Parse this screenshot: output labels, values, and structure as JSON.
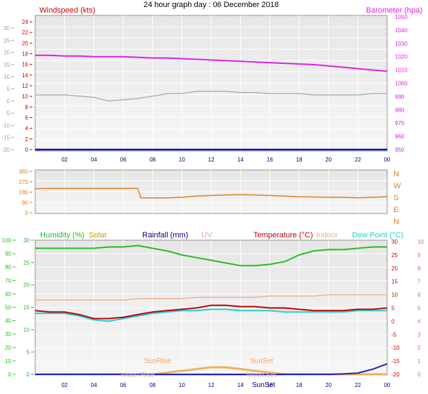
{
  "page_title": "24 hour graph day : 06 December 2018",
  "x_axis": {
    "ticks": [
      "02",
      "04",
      "06",
      "08",
      "10",
      "12",
      "14",
      "16",
      "18",
      "20",
      "22",
      "00"
    ]
  },
  "panel_wind_baro": {
    "left_label": "Windspeed (kts)",
    "right_label": "Barometer (hpa)",
    "left_outer_ticks": [
      "30",
      "25",
      "20",
      "15",
      "10",
      "5",
      "0",
      "-5",
      "-10",
      "-15",
      "-20"
    ],
    "left_ticks": [
      "24",
      "22",
      "20",
      "18",
      "16",
      "14",
      "12",
      "10",
      "8",
      "6",
      "4",
      "2",
      "0"
    ],
    "right_ticks": [
      "1050",
      "1040",
      "1030",
      "1020",
      "1010",
      "1000",
      "990",
      "980",
      "970",
      "960",
      "950"
    ],
    "colors": {
      "windspeed": "#d00000",
      "barometer": "#e020e0",
      "gust": "#b0b0b0",
      "outer": "#a0a0a0"
    }
  },
  "panel_direction": {
    "left_ticks": [
      "360",
      "270",
      "180",
      "90",
      "0"
    ],
    "right_labels": [
      "N",
      "W",
      "S",
      "E",
      "N"
    ],
    "color": "#e08020"
  },
  "panel_temp": {
    "labels": {
      "humidity": "Humidity (%)",
      "solar": "Solar",
      "rainfall": "Rainfall (mm)",
      "uv": "UV",
      "temperature": "Temperature (°C)",
      "indoor": "Indoor",
      "dewpoint": "Dew Point (°C)"
    },
    "left_outer_ticks": [
      "100",
      "90",
      "80",
      "70",
      "60",
      "50",
      "40",
      "30",
      "20",
      "10",
      "0"
    ],
    "left_ticks": [
      "30",
      "25",
      "20",
      "15",
      "10",
      "5",
      "0"
    ],
    "right_ticks": [
      "30",
      "25",
      "20",
      "15",
      "10",
      "5",
      "0",
      "-5",
      "-10",
      "-15",
      "-20"
    ],
    "right_outer_ticks": [
      "10",
      "9",
      "8",
      "7",
      "6",
      "5",
      "4",
      "3",
      "2",
      "1",
      "0"
    ],
    "annotations": {
      "sunrise": "SunRise",
      "sunset": "SunSet",
      "sunset_axis": "SunSet",
      "moonrise": "Moon Rise",
      "moonset": "Moon Set"
    },
    "colors": {
      "humidity": "#20c020",
      "solar": "#c0a000",
      "rainfall": "#000080",
      "uv": "#e0a0c0",
      "temperature": "#c00000",
      "indoor": "#f0b090",
      "dewpoint": "#20d0d0"
    }
  },
  "chart_data": [
    {
      "type": "line",
      "title": "24 hour graph day : 06 December 2018",
      "ylabel": "Windspeed (kts)",
      "ylabel_right": "Barometer (hpa)",
      "ylim": [
        0,
        25
      ],
      "ylim_right": [
        950,
        1050
      ],
      "x_hours": [
        0,
        1,
        2,
        3,
        4,
        5,
        6,
        7,
        8,
        9,
        10,
        11,
        12,
        13,
        14,
        15,
        16,
        17,
        18,
        19,
        20,
        21,
        22,
        23,
        24
      ],
      "series": [
        {
          "name": "Windspeed (kts)",
          "axis": "left",
          "values": [
            0,
            0,
            0,
            0,
            0,
            0,
            0,
            0,
            0,
            0,
            0,
            0,
            0,
            0,
            0,
            0,
            0,
            0,
            0,
            0,
            0,
            0,
            0,
            0,
            0
          ]
        },
        {
          "name": "Barometer (hpa)",
          "axis": "right",
          "values": [
            1021,
            1021,
            1020.5,
            1020.5,
            1020,
            1020,
            1020,
            1019.5,
            1019,
            1019,
            1018.5,
            1018,
            1017.5,
            1017,
            1016.5,
            1016,
            1015.5,
            1015,
            1014.5,
            1014,
            1013,
            1012,
            1011,
            1010,
            1009
          ]
        },
        {
          "axis": "outer",
          "values": [
            2.5,
            2.5,
            2.5,
            2,
            1.5,
            0,
            0.5,
            1,
            2,
            3,
            3,
            4,
            4,
            4,
            3.5,
            3.5,
            3,
            3,
            3,
            2.5,
            2.5,
            2.5,
            2.5,
            3,
            3
          ]
        }
      ]
    },
    {
      "type": "line",
      "ylim": [
        0,
        360
      ],
      "x_hours": [
        0,
        1,
        2,
        3,
        4,
        5,
        6,
        7,
        7.2,
        8,
        9,
        10,
        11,
        12,
        13,
        14,
        15,
        16,
        17,
        18,
        19,
        20,
        21,
        22,
        23,
        24
      ],
      "series": [
        {
          "values": [
            210,
            212,
            212,
            212,
            212,
            212,
            212,
            212,
            130,
            130,
            130,
            135,
            145,
            150,
            155,
            158,
            155,
            150,
            145,
            140,
            138,
            135,
            135,
            130,
            135,
            140
          ]
        }
      ]
    },
    {
      "type": "line",
      "ylim_humidity": [
        0,
        100
      ],
      "ylim_temperature": [
        -20,
        30
      ],
      "x_hours": [
        0,
        1,
        2,
        3,
        4,
        5,
        6,
        7,
        8,
        9,
        10,
        11,
        12,
        13,
        14,
        15,
        16,
        17,
        18,
        19,
        20,
        21,
        22,
        23,
        24
      ],
      "series": [
        {
          "name": "Humidity (%)",
          "axis": "humidity",
          "values": [
            94,
            94,
            94,
            94,
            94,
            95,
            95,
            96,
            94,
            92,
            89,
            87,
            85,
            83,
            81,
            81,
            82,
            84,
            89,
            92,
            93,
            93,
            94,
            95,
            95
          ]
        },
        {
          "name": "Temperature (°C)",
          "axis": "temperature",
          "values": [
            4,
            3.5,
            3.5,
            2.5,
            1,
            1,
            1.5,
            2.5,
            3.5,
            4,
            4.5,
            5,
            6,
            6,
            5.5,
            5.5,
            5,
            5,
            4.5,
            4,
            4,
            4,
            4.5,
            4.5,
            5
          ]
        },
        {
          "name": "Dew Point (°C)",
          "axis": "temperature",
          "values": [
            3,
            3,
            3,
            2,
            0.5,
            0,
            1,
            2,
            3,
            3.5,
            4,
            4,
            4.5,
            4.5,
            4,
            4,
            4,
            3.5,
            3.5,
            3.5,
            3.5,
            3.5,
            4,
            4,
            4
          ]
        },
        {
          "name": "Indoor",
          "axis": "temperature",
          "values": [
            8,
            8,
            8,
            8,
            8,
            8,
            8,
            8.5,
            8.5,
            8.5,
            8.5,
            9,
            9,
            9,
            9,
            9,
            9.5,
            9.5,
            9.5,
            9.5,
            10,
            10,
            10,
            10,
            10
          ]
        },
        {
          "name": "Solar",
          "axis": "humidity",
          "values": [
            0,
            0,
            0,
            0,
            0,
            0,
            0,
            0,
            0,
            0.5,
            1,
            1.5,
            2,
            2,
            1.5,
            1,
            0.5,
            0,
            0,
            0,
            0,
            0,
            0,
            0,
            0
          ]
        },
        {
          "name": "Rainfall (mm)",
          "axis": "rainfall",
          "values": [
            0,
            0,
            0,
            0,
            0,
            0,
            0,
            0,
            0,
            0,
            0,
            0,
            0,
            0,
            0,
            0,
            0,
            0,
            0,
            0,
            0,
            0.1,
            0.3,
            1.2,
            2.5
          ]
        }
      ]
    }
  ]
}
